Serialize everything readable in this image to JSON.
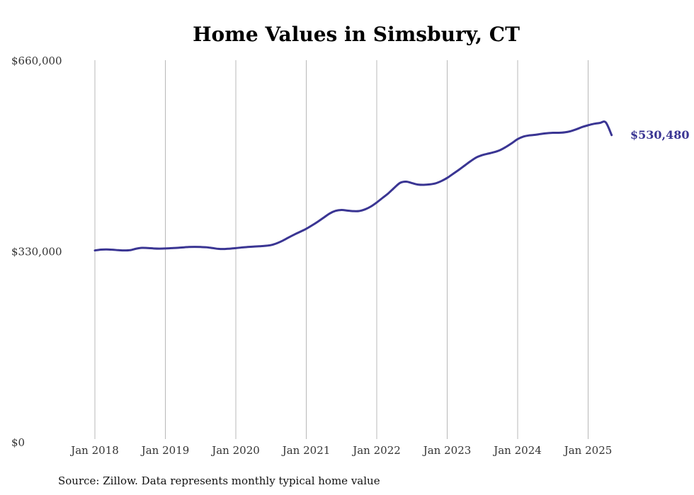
{
  "chart_data": {
    "type": "line",
    "title": "Home Values in Simsbury, CT",
    "xlabel": "",
    "ylabel": "",
    "ylim": [
      0,
      660000
    ],
    "y_ticks": [
      {
        "value": 0,
        "label": "$0"
      },
      {
        "value": 330000,
        "label": "$330,000"
      },
      {
        "value": 660000,
        "label": "$660,000"
      }
    ],
    "x_ticks": [
      "Jan 2018",
      "Jan 2019",
      "Jan 2020",
      "Jan 2021",
      "Jan 2022",
      "Jan 2023",
      "Jan 2024",
      "Jan 2025"
    ],
    "grid": "vertical",
    "line_color": "#3a3593",
    "end_label": "$530,480",
    "source": "Source: Zillow. Data represents monthly typical home value",
    "series": [
      {
        "x": [
          "2018-01",
          "2018-02",
          "2018-03",
          "2018-04",
          "2018-05",
          "2018-06",
          "2018-07",
          "2018-08",
          "2018-09",
          "2018-10",
          "2018-11",
          "2018-12",
          "2019-01",
          "2019-02",
          "2019-03",
          "2019-04",
          "2019-05",
          "2019-06",
          "2019-07",
          "2019-08",
          "2019-09",
          "2019-10",
          "2019-11",
          "2019-12",
          "2020-01",
          "2020-02",
          "2020-03",
          "2020-04",
          "2020-05",
          "2020-06",
          "2020-07",
          "2020-08",
          "2020-09",
          "2020-10",
          "2020-11",
          "2020-12",
          "2021-01",
          "2021-02",
          "2021-03",
          "2021-04",
          "2021-05",
          "2021-06",
          "2021-07",
          "2021-08",
          "2021-09",
          "2021-10",
          "2021-11",
          "2021-12",
          "2022-01",
          "2022-02",
          "2022-03",
          "2022-04",
          "2022-05",
          "2022-06",
          "2022-07",
          "2022-08",
          "2022-09",
          "2022-10",
          "2022-11",
          "2022-12",
          "2023-01",
          "2023-02",
          "2023-03",
          "2023-04",
          "2023-05",
          "2023-06",
          "2023-07",
          "2023-08",
          "2023-09",
          "2023-10",
          "2023-11",
          "2023-12",
          "2024-01",
          "2024-02",
          "2024-03",
          "2024-04",
          "2024-05",
          "2024-06",
          "2024-07",
          "2024-08",
          "2024-09",
          "2024-10",
          "2024-11",
          "2024-12",
          "2025-01",
          "2025-02",
          "2025-03",
          "2025-04",
          "2025-05"
        ],
        "values": [
          331000,
          332500,
          332800,
          332300,
          331500,
          331000,
          331500,
          334000,
          335500,
          335200,
          334500,
          334200,
          334500,
          335000,
          335500,
          336300,
          337000,
          337200,
          337000,
          336500,
          335200,
          333800,
          333500,
          334200,
          335000,
          336200,
          337000,
          337700,
          338300,
          339000,
          340300,
          343500,
          348000,
          353500,
          358700,
          363500,
          368500,
          374500,
          381000,
          388000,
          395000,
          399500,
          401000,
          400000,
          399000,
          399200,
          402000,
          407000,
          414000,
          422000,
          430000,
          439500,
          448000,
          450000,
          447500,
          445000,
          444500,
          445200,
          447000,
          451000,
          456500,
          463500,
          470500,
          478000,
          485500,
          492000,
          496000,
          498500,
          501000,
          504500,
          510000,
          516500,
          523500,
          528000,
          530000,
          531000,
          532500,
          533700,
          534500,
          534500,
          535200,
          537200,
          540500,
          544500,
          547500,
          550000,
          551500,
          552500,
          530480
        ],
        "name": ""
      }
    ]
  }
}
